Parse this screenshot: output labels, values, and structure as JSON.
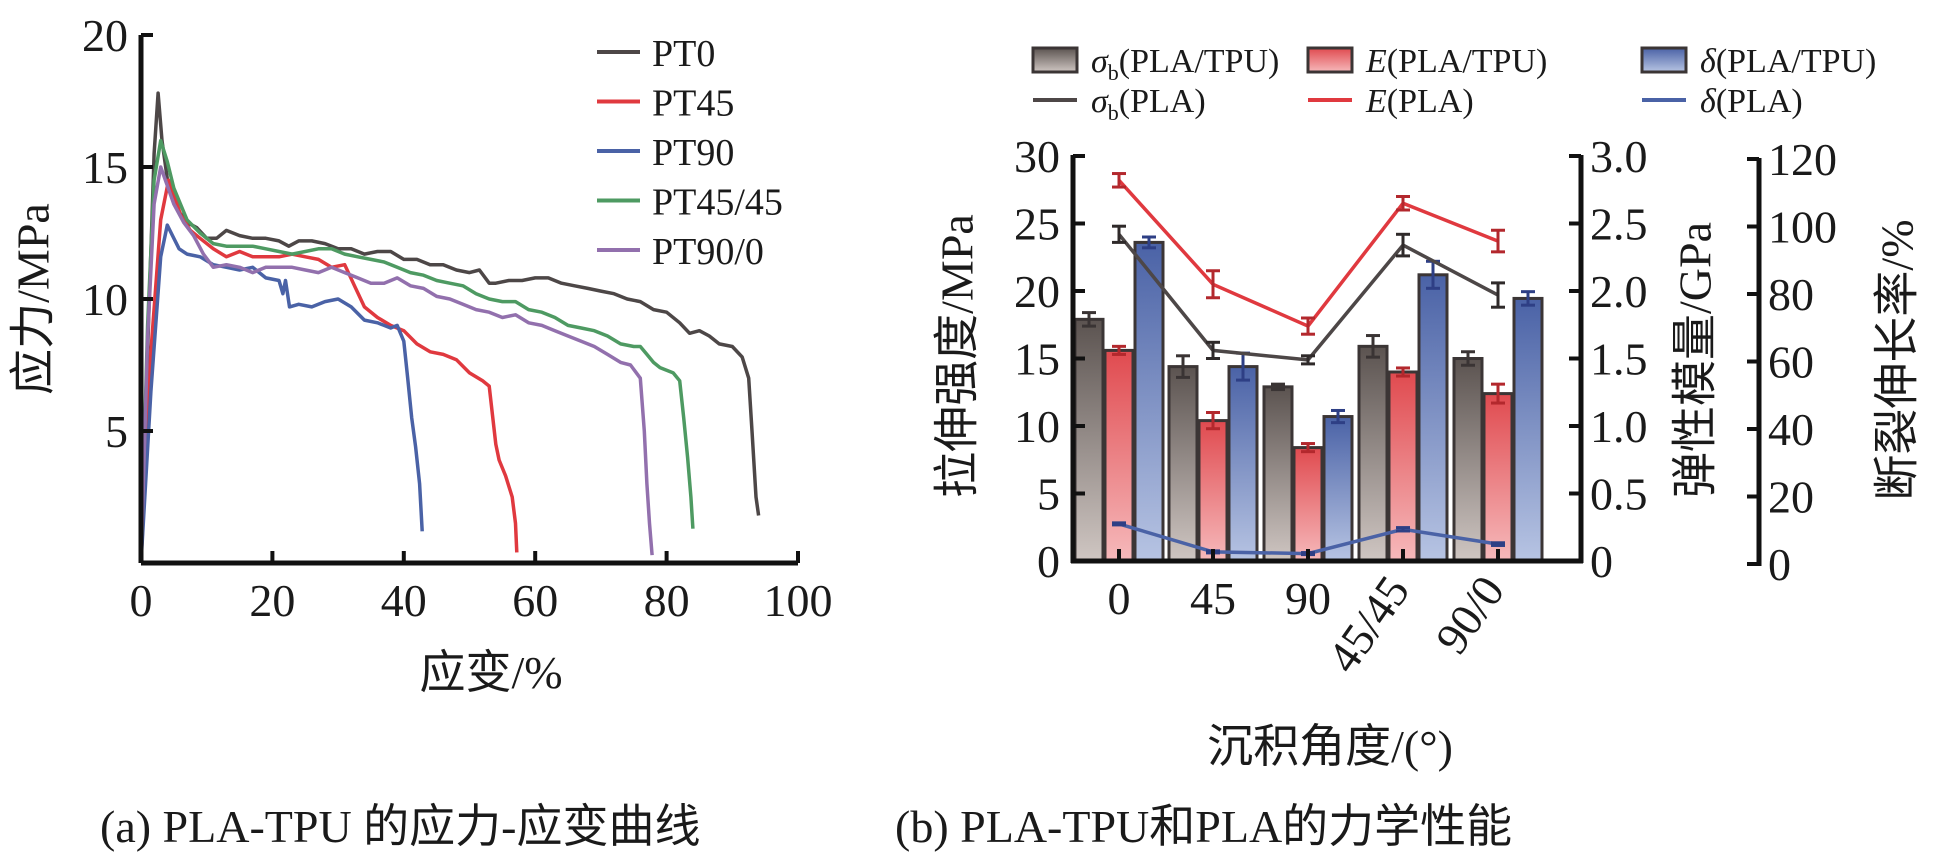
{
  "captions": {
    "a": "(a) PLA-TPU 的应力-应变曲线",
    "b": "(b) PLA-TPU和PLA的力学性能"
  },
  "chart_data": [
    {
      "type": "line",
      "title": "",
      "xlabel": "应变/%",
      "ylabel": "应力/MPa",
      "xlim": [
        0,
        100
      ],
      "ylim": [
        0,
        20
      ],
      "xticks": [
        "0",
        "20",
        "40",
        "60",
        "80",
        "100"
      ],
      "yticks": [
        "5",
        "10",
        "15",
        "20"
      ],
      "grid": false,
      "legend_position": "top-right",
      "series": [
        {
          "name": "PT0",
          "color": "#4d4747",
          "x": [
            0,
            1.0,
            2.0,
            2.6,
            3.2,
            4.2,
            5.5,
            7.0,
            8.5,
            10.0,
            11.5,
            13.0,
            15.0,
            17.0,
            19.0,
            21.0,
            22.5,
            24.0,
            26.0,
            28.0,
            30.0,
            32.0,
            34.0,
            36.0,
            38.0,
            40.0,
            42.0,
            44.0,
            46.0,
            48.0,
            50.0,
            51.5,
            53.0,
            54.0,
            56.0,
            58.0,
            60.0,
            62.0,
            64.0,
            66.0,
            68.0,
            70.0,
            72.0,
            74.0,
            76.0,
            78.0,
            80.0,
            82.0,
            83.5,
            85.0,
            86.5,
            88.0,
            90.0,
            91.5,
            92.5,
            93.0,
            93.6,
            94.0
          ],
          "y": [
            0,
            8.0,
            15.5,
            17.8,
            16.0,
            14.2,
            13.4,
            12.9,
            12.7,
            12.3,
            12.3,
            12.6,
            12.4,
            12.3,
            12.3,
            12.2,
            12.0,
            12.2,
            12.2,
            12.1,
            11.9,
            11.9,
            11.7,
            11.8,
            11.8,
            11.5,
            11.5,
            11.3,
            11.3,
            11.1,
            11.0,
            11.1,
            10.6,
            10.6,
            10.7,
            10.7,
            10.8,
            10.8,
            10.6,
            10.5,
            10.4,
            10.3,
            10.2,
            10.0,
            9.9,
            9.6,
            9.5,
            9.1,
            8.7,
            8.8,
            8.6,
            8.3,
            8.2,
            7.8,
            7.0,
            5.0,
            2.5,
            1.8
          ]
        },
        {
          "name": "PT45",
          "color": "#e0393f",
          "x": [
            0,
            1.5,
            3.0,
            4.2,
            5.0,
            6.0,
            7.5,
            9.0,
            11.0,
            13.0,
            15.0,
            17.0,
            19.0,
            21.0,
            23.0,
            25.0,
            27.0,
            29.0,
            31.0,
            32.5,
            34.0,
            36.0,
            38.0,
            40.0,
            42.0,
            44.0,
            46.0,
            48.0,
            50.0,
            52.0,
            53.0,
            53.5,
            54.0,
            54.5,
            55.5,
            56.5,
            57.0,
            57.2
          ],
          "y": [
            0,
            8.0,
            13.0,
            14.5,
            14.0,
            13.2,
            12.6,
            12.3,
            11.9,
            11.6,
            11.8,
            11.6,
            11.6,
            11.6,
            11.7,
            11.6,
            11.5,
            11.2,
            11.3,
            10.5,
            9.7,
            9.3,
            9.0,
            8.8,
            8.3,
            8.0,
            7.9,
            7.7,
            7.2,
            6.9,
            6.7,
            5.6,
            4.5,
            3.9,
            3.3,
            2.5,
            1.5,
            0.4
          ]
        },
        {
          "name": "PT90",
          "color": "#4a62a6",
          "x": [
            0,
            1.5,
            3.0,
            4.0,
            4.8,
            5.8,
            7.0,
            9.0,
            11.0,
            13.0,
            15.0,
            17.0,
            19.0,
            21.0,
            21.6,
            22.0,
            22.6,
            24.0,
            26.0,
            28.0,
            30.0,
            32.0,
            34.0,
            36.0,
            38.0,
            39.0,
            40.0,
            40.6,
            41.2,
            41.8,
            42.4,
            42.8
          ],
          "y": [
            0,
            6.5,
            11.6,
            12.8,
            12.4,
            11.9,
            11.7,
            11.6,
            11.3,
            11.2,
            11.1,
            11.2,
            10.8,
            10.7,
            10.2,
            10.7,
            9.7,
            9.8,
            9.7,
            9.9,
            10.0,
            9.7,
            9.2,
            9.1,
            8.9,
            9.0,
            8.4,
            7.0,
            5.5,
            4.4,
            3.0,
            1.2
          ]
        },
        {
          "name": "PT45/45",
          "color": "#4e9a62",
          "x": [
            0,
            1.0,
            2.0,
            3.0,
            4.0,
            5.0,
            7.0,
            9.0,
            11.0,
            13.0,
            15.0,
            17.0,
            19.0,
            21.0,
            23.0,
            25.0,
            27.0,
            29.0,
            31.0,
            33.0,
            35.0,
            37.0,
            39.0,
            41.0,
            43.0,
            45.0,
            47.0,
            49.0,
            51.0,
            53.0,
            55.0,
            57.0,
            59.0,
            61.0,
            63.0,
            65.0,
            67.0,
            69.0,
            71.0,
            73.0,
            75.0,
            76.0,
            77.0,
            78.0,
            79.0,
            80.0,
            81.0,
            82.0,
            82.6,
            83.2,
            83.7,
            84.0
          ],
          "y": [
            0,
            9.0,
            14.5,
            16.0,
            15.2,
            14.2,
            13.0,
            12.5,
            12.1,
            12.0,
            12.0,
            12.0,
            11.9,
            11.8,
            11.7,
            11.8,
            11.9,
            11.9,
            11.7,
            11.6,
            11.5,
            11.4,
            11.2,
            11.0,
            10.9,
            10.7,
            10.6,
            10.5,
            10.2,
            10.0,
            9.9,
            9.9,
            9.6,
            9.5,
            9.3,
            9.0,
            8.9,
            8.8,
            8.6,
            8.3,
            8.2,
            8.2,
            7.9,
            7.6,
            7.4,
            7.3,
            7.2,
            6.9,
            5.5,
            4.0,
            2.5,
            1.3
          ]
        },
        {
          "name": "PT90/0",
          "color": "#9270ad",
          "x": [
            0,
            1.0,
            2.0,
            3.0,
            4.0,
            5.0,
            6.5,
            8.0,
            9.5,
            11.0,
            13.0,
            15.0,
            17.0,
            19.0,
            21.0,
            23.0,
            25.0,
            27.0,
            29.0,
            31.0,
            33.0,
            35.0,
            37.0,
            39.0,
            41.0,
            43.0,
            45.0,
            47.0,
            49.0,
            51.0,
            53.0,
            55.0,
            57.0,
            59.0,
            61.0,
            63.0,
            65.0,
            67.0,
            69.0,
            71.0,
            73.0,
            74.5,
            76.0,
            76.6,
            77.0,
            77.4,
            77.8
          ],
          "y": [
            0,
            8.5,
            13.6,
            15.0,
            14.3,
            13.6,
            12.9,
            12.4,
            11.7,
            11.2,
            11.3,
            11.2,
            11.0,
            11.2,
            11.2,
            11.2,
            11.1,
            11.0,
            11.2,
            11.0,
            10.8,
            10.6,
            10.6,
            10.8,
            10.5,
            10.4,
            10.1,
            10.0,
            9.8,
            9.6,
            9.5,
            9.3,
            9.4,
            9.1,
            9.0,
            8.8,
            8.6,
            8.4,
            8.2,
            7.9,
            7.6,
            7.5,
            7.0,
            5.0,
            3.0,
            1.5,
            0.3
          ]
        }
      ]
    },
    {
      "type": "bar",
      "title": "",
      "xlabel": "沉积角度/(°)",
      "ylabel_left": "拉伸强度/MPa",
      "ylabel_right1": "弹性模量/GPa",
      "ylabel_right2": "断裂伸长率/%",
      "categories": [
        "0",
        "45",
        "90",
        "45/45",
        "90/0"
      ],
      "ylim_left": [
        0,
        30
      ],
      "ylim_right1": [
        0,
        3.0
      ],
      "ylim_right2": [
        0,
        120
      ],
      "yticks_left": [
        "0",
        "5",
        "10",
        "15",
        "20",
        "25",
        "30"
      ],
      "yticks_right1": [
        "0",
        "0.5",
        "1.0",
        "1.5",
        "2.0",
        "2.5",
        "3.0"
      ],
      "yticks_right2": [
        "0",
        "20",
        "40",
        "60",
        "80",
        "100",
        "120"
      ],
      "grid": false,
      "legend_position": "top",
      "legend": [
        {
          "symbol": "σ",
          "sub": "b",
          "text": "(PLA/TPU)",
          "kind": "bar",
          "color": "#5b5350"
        },
        {
          "symbol": "E",
          "sub": "",
          "text": "(PLA/TPU)",
          "kind": "bar",
          "color": "#e04a4f"
        },
        {
          "symbol": "δ",
          "sub": "",
          "text": "(PLA/TPU)",
          "kind": "bar",
          "color": "#4a62a6"
        },
        {
          "symbol": "σ",
          "sub": "b",
          "text": "(PLA)",
          "kind": "line",
          "color": "#4d4747"
        },
        {
          "symbol": "E",
          "sub": "",
          "text": "(PLA)",
          "kind": "line",
          "color": "#e0393f"
        },
        {
          "symbol": "δ",
          "sub": "",
          "text": "(PLA)",
          "kind": "line",
          "color": "#4a62a6"
        }
      ],
      "bar_series": [
        {
          "name": "σb(PLA/TPU)",
          "axis": "left",
          "unit": "MPa",
          "values": [
            17.9,
            14.4,
            12.9,
            15.9,
            15.0
          ],
          "errors": [
            0.5,
            0.8,
            0.2,
            0.8,
            0.5
          ],
          "color_top": "#5b5350",
          "color_bottom": "#cfc6c2",
          "err_color": "#3a3434"
        },
        {
          "name": "E(PLA/TPU)",
          "axis": "right1",
          "unit": "GPa",
          "values": [
            1.56,
            1.04,
            0.84,
            1.4,
            1.24
          ],
          "errors": [
            0.03,
            0.06,
            0.03,
            0.03,
            0.07
          ],
          "color_top": "#e04a4f",
          "color_bottom": "#f6b9bb",
          "err_color": "#b3282d"
        },
        {
          "name": "δ(PLA/TPU)",
          "axis": "right2",
          "unit": "%",
          "values": [
            94.4,
            57.6,
            42.8,
            84.8,
            77.8
          ],
          "errors": [
            1.6,
            4.0,
            1.8,
            4.0,
            2.0
          ],
          "color_top": "#4a62a6",
          "color_bottom": "#b7c4e3",
          "err_color": "#2e3f85"
        }
      ],
      "line_series": [
        {
          "name": "σb(PLA)",
          "axis": "left",
          "unit": "MPa",
          "values": [
            24.2,
            15.6,
            14.9,
            23.4,
            19.7
          ],
          "errors": [
            0.6,
            0.6,
            0.3,
            0.8,
            0.9
          ],
          "color": "#4d4747"
        },
        {
          "name": "E(PLA)",
          "axis": "right1",
          "unit": "GPa",
          "values": [
            2.82,
            2.05,
            1.74,
            2.65,
            2.37
          ],
          "errors": [
            0.05,
            0.1,
            0.06,
            0.05,
            0.08
          ],
          "color": "#e0393f"
        },
        {
          "name": "δ(PLA)",
          "axis": "right2",
          "unit": "%",
          "values": [
            11.0,
            2.7,
            2.2,
            9.4,
            5.0
          ],
          "errors": [
            0.3,
            0.3,
            0.3,
            0.5,
            0.4
          ],
          "color": "#4a62a6"
        }
      ]
    }
  ]
}
